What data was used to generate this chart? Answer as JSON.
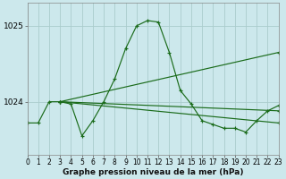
{
  "title": "Graphe pression niveau de la mer (hPa)",
  "bg_color": "#cce8ec",
  "grid_color": "#aacccc",
  "line_color": "#1a6b1a",
  "xlim": [
    0,
    23
  ],
  "ylim": [
    1023.3,
    1025.3
  ],
  "yticks": [
    1024,
    1025
  ],
  "xtick_fontsize": 5.5,
  "ytick_fontsize": 6.5,
  "xticks": [
    0,
    1,
    2,
    3,
    4,
    5,
    6,
    7,
    8,
    9,
    10,
    11,
    12,
    13,
    14,
    15,
    16,
    17,
    18,
    19,
    20,
    21,
    22,
    23
  ],
  "series": [
    {
      "x": [
        0,
        1,
        2,
        3,
        4,
        5,
        6,
        7,
        8,
        9,
        10,
        11,
        12,
        13,
        14,
        15,
        16,
        17,
        18,
        19,
        20,
        21,
        22,
        23
      ],
      "y": [
        1023.72,
        1023.72,
        1024.0,
        1024.0,
        1023.97,
        1023.55,
        1023.75,
        1024.0,
        1024.3,
        1024.7,
        1025.0,
        1025.07,
        1025.05,
        1024.65,
        1024.15,
        1023.97,
        1023.75,
        1023.7,
        1023.65,
        1023.65,
        1023.6,
        1023.75,
        1023.88,
        1023.95
      ]
    },
    {
      "x": [
        3,
        23
      ],
      "y": [
        1024.0,
        1024.65
      ]
    },
    {
      "x": [
        3,
        23
      ],
      "y": [
        1024.0,
        1023.88
      ]
    },
    {
      "x": [
        3,
        23
      ],
      "y": [
        1024.0,
        1023.72
      ]
    }
  ]
}
